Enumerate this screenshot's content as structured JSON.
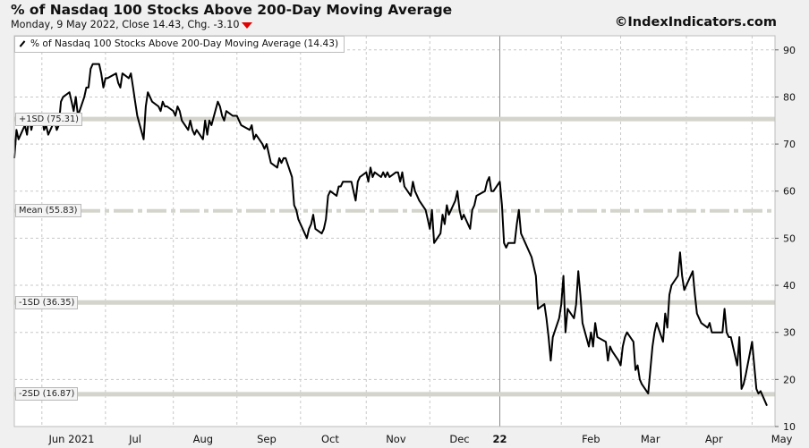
{
  "header": {
    "title": "% of Nasdaq 100 Stocks Above 200-Day Moving Average",
    "subtitle": "Monday, 9 May 2022, Close 14.43, Chg. -3.10",
    "change_direction": "down",
    "change_color": "#e00000",
    "source": "©IndexIndicators.com"
  },
  "chart_data": {
    "type": "line",
    "title": "% of Nasdaq 100 Stocks Above 200-Day Moving Average",
    "legend": {
      "label": "% of Nasdaq 100 Stocks Above 200-Day Moving Average (14.43)",
      "placement": "top-left"
    },
    "y_axis": {
      "position": "right",
      "ylim": [
        10,
        93
      ],
      "ticks": [
        10,
        20,
        30,
        40,
        50,
        60,
        70,
        80,
        90
      ]
    },
    "x_axis": {
      "ticks": [
        "Jun 2021",
        "Jul",
        "Aug",
        "Sep",
        "Oct",
        "Nov",
        "Dec",
        "22",
        "Feb",
        "Mar",
        "Apr",
        "May"
      ],
      "year_separator_index": 7
    },
    "grid": true,
    "line_color": "#000000",
    "reference_lines": [
      {
        "label": "+1SD (75.31)",
        "value": 75.31,
        "style": "band"
      },
      {
        "label": "Mean (55.83)",
        "value": 55.83,
        "style": "dashdot"
      },
      {
        "label": "-1SD (36.35)",
        "value": 36.35,
        "style": "band"
      },
      {
        "label": "-2SD (16.87)",
        "value": 16.87,
        "style": "band"
      }
    ],
    "series": [
      {
        "name": "% of Nasdaq 100 Stocks Above 200-Day Moving Average",
        "points": [
          [
            "2021-05-19",
            67
          ],
          [
            "2021-05-20",
            73
          ],
          [
            "2021-05-21",
            71
          ],
          [
            "2021-05-24",
            74
          ],
          [
            "2021-05-25",
            72
          ],
          [
            "2021-05-26",
            76
          ],
          [
            "2021-05-27",
            73
          ],
          [
            "2021-05-28",
            75
          ],
          [
            "2021-06-01",
            76
          ],
          [
            "2021-06-02",
            73
          ],
          [
            "2021-06-03",
            74
          ],
          [
            "2021-06-04",
            72
          ],
          [
            "2021-06-07",
            75
          ],
          [
            "2021-06-08",
            73
          ],
          [
            "2021-06-09",
            74
          ],
          [
            "2021-06-10",
            79
          ],
          [
            "2021-06-11",
            80
          ],
          [
            "2021-06-14",
            81
          ],
          [
            "2021-06-15",
            79
          ],
          [
            "2021-06-16",
            77
          ],
          [
            "2021-06-17",
            80
          ],
          [
            "2021-06-18",
            76
          ],
          [
            "2021-06-21",
            80
          ],
          [
            "2021-06-22",
            82
          ],
          [
            "2021-06-23",
            82
          ],
          [
            "2021-06-24",
            86
          ],
          [
            "2021-06-25",
            87
          ],
          [
            "2021-06-28",
            87
          ],
          [
            "2021-06-29",
            85
          ],
          [
            "2021-06-30",
            82
          ],
          [
            "2021-07-01",
            84
          ],
          [
            "2021-07-02",
            84
          ],
          [
            "2021-07-06",
            85
          ],
          [
            "2021-07-07",
            83
          ],
          [
            "2021-07-08",
            82
          ],
          [
            "2021-07-09",
            85
          ],
          [
            "2021-07-12",
            84
          ],
          [
            "2021-07-13",
            85
          ],
          [
            "2021-07-14",
            82
          ],
          [
            "2021-07-15",
            79
          ],
          [
            "2021-07-16",
            76
          ],
          [
            "2021-07-19",
            71
          ],
          [
            "2021-07-20",
            78
          ],
          [
            "2021-07-21",
            81
          ],
          [
            "2021-07-22",
            80
          ],
          [
            "2021-07-23",
            79
          ],
          [
            "2021-07-26",
            78
          ],
          [
            "2021-07-27",
            77
          ],
          [
            "2021-07-28",
            79
          ],
          [
            "2021-07-29",
            78
          ],
          [
            "2021-07-30",
            78
          ],
          [
            "2021-08-02",
            77
          ],
          [
            "2021-08-03",
            76
          ],
          [
            "2021-08-04",
            78
          ],
          [
            "2021-08-05",
            77
          ],
          [
            "2021-08-06",
            75
          ],
          [
            "2021-08-09",
            73
          ],
          [
            "2021-08-10",
            75
          ],
          [
            "2021-08-11",
            73
          ],
          [
            "2021-08-12",
            72
          ],
          [
            "2021-08-13",
            73
          ],
          [
            "2021-08-16",
            71
          ],
          [
            "2021-08-17",
            75
          ],
          [
            "2021-08-18",
            72
          ],
          [
            "2021-08-19",
            75
          ],
          [
            "2021-08-20",
            74
          ],
          [
            "2021-08-23",
            79
          ],
          [
            "2021-08-24",
            78
          ],
          [
            "2021-08-25",
            76
          ],
          [
            "2021-08-26",
            75
          ],
          [
            "2021-08-27",
            77
          ],
          [
            "2021-08-30",
            76
          ],
          [
            "2021-08-31",
            76
          ],
          [
            "2021-09-01",
            76
          ],
          [
            "2021-09-02",
            75
          ],
          [
            "2021-09-03",
            74
          ],
          [
            "2021-09-07",
            73
          ],
          [
            "2021-09-08",
            74
          ],
          [
            "2021-09-09",
            71
          ],
          [
            "2021-09-10",
            72
          ],
          [
            "2021-09-13",
            70
          ],
          [
            "2021-09-14",
            69
          ],
          [
            "2021-09-15",
            70
          ],
          [
            "2021-09-16",
            68
          ],
          [
            "2021-09-17",
            66
          ],
          [
            "2021-09-20",
            65
          ],
          [
            "2021-09-21",
            67
          ],
          [
            "2021-09-22",
            66
          ],
          [
            "2021-09-23",
            67
          ],
          [
            "2021-09-24",
            67
          ],
          [
            "2021-09-27",
            63
          ],
          [
            "2021-09-28",
            57
          ],
          [
            "2021-09-29",
            56
          ],
          [
            "2021-09-30",
            54
          ],
          [
            "2021-10-01",
            53
          ],
          [
            "2021-10-04",
            50
          ],
          [
            "2021-10-05",
            52
          ],
          [
            "2021-10-06",
            53
          ],
          [
            "2021-10-07",
            55
          ],
          [
            "2021-10-08",
            52
          ],
          [
            "2021-10-11",
            51
          ],
          [
            "2021-10-12",
            52
          ],
          [
            "2021-10-13",
            54
          ],
          [
            "2021-10-14",
            59
          ],
          [
            "2021-10-15",
            60
          ],
          [
            "2021-10-18",
            59
          ],
          [
            "2021-10-19",
            61
          ],
          [
            "2021-10-20",
            61
          ],
          [
            "2021-10-21",
            62
          ],
          [
            "2021-10-22",
            62
          ],
          [
            "2021-10-25",
            62
          ],
          [
            "2021-10-26",
            60
          ],
          [
            "2021-10-27",
            58
          ],
          [
            "2021-10-28",
            62
          ],
          [
            "2021-10-29",
            63
          ],
          [
            "2021-11-01",
            64
          ],
          [
            "2021-11-02",
            62
          ],
          [
            "2021-11-03",
            65
          ],
          [
            "2021-11-04",
            63
          ],
          [
            "2021-11-05",
            64
          ],
          [
            "2021-11-08",
            63
          ],
          [
            "2021-11-09",
            64
          ],
          [
            "2021-11-10",
            63
          ],
          [
            "2021-11-11",
            64
          ],
          [
            "2021-11-12",
            63
          ],
          [
            "2021-11-15",
            64
          ],
          [
            "2021-11-16",
            64
          ],
          [
            "2021-11-17",
            62
          ],
          [
            "2021-11-18",
            64
          ],
          [
            "2021-11-19",
            61
          ],
          [
            "2021-11-22",
            59
          ],
          [
            "2021-11-23",
            62
          ],
          [
            "2021-11-24",
            60
          ],
          [
            "2021-11-26",
            58
          ],
          [
            "2021-11-29",
            56
          ],
          [
            "2021-11-30",
            54
          ],
          [
            "2021-12-01",
            52
          ],
          [
            "2021-12-02",
            56
          ],
          [
            "2021-12-03",
            49
          ],
          [
            "2021-12-06",
            51
          ],
          [
            "2021-12-07",
            55
          ],
          [
            "2021-12-08",
            53
          ],
          [
            "2021-12-09",
            57
          ],
          [
            "2021-12-10",
            55
          ],
          [
            "2021-12-13",
            58
          ],
          [
            "2021-12-14",
            60
          ],
          [
            "2021-12-15",
            56
          ],
          [
            "2021-12-16",
            54
          ],
          [
            "2021-12-17",
            55
          ],
          [
            "2021-12-20",
            52
          ],
          [
            "2021-12-21",
            56
          ],
          [
            "2021-12-22",
            57
          ],
          [
            "2021-12-23",
            59
          ],
          [
            "2021-12-27",
            60
          ],
          [
            "2021-12-28",
            62
          ],
          [
            "2021-12-29",
            63
          ],
          [
            "2021-12-30",
            60
          ],
          [
            "2021-12-31",
            60
          ],
          [
            "2022-01-03",
            62
          ],
          [
            "2022-01-04",
            57
          ],
          [
            "2022-01-05",
            49
          ],
          [
            "2022-01-06",
            48
          ],
          [
            "2022-01-07",
            49
          ],
          [
            "2022-01-10",
            49
          ],
          [
            "2022-01-11",
            53
          ],
          [
            "2022-01-12",
            56
          ],
          [
            "2022-01-13",
            51
          ],
          [
            "2022-01-14",
            50
          ],
          [
            "2022-01-18",
            46
          ],
          [
            "2022-01-19",
            44
          ],
          [
            "2022-01-20",
            42
          ],
          [
            "2022-01-21",
            35
          ],
          [
            "2022-01-24",
            36
          ],
          [
            "2022-01-25",
            33
          ],
          [
            "2022-01-26",
            29
          ],
          [
            "2022-01-27",
            24
          ],
          [
            "2022-01-28",
            29
          ],
          [
            "2022-01-31",
            33
          ],
          [
            "2022-02-01",
            36
          ],
          [
            "2022-02-02",
            42
          ],
          [
            "2022-02-03",
            30
          ],
          [
            "2022-02-04",
            35
          ],
          [
            "2022-02-07",
            33
          ],
          [
            "2022-02-08",
            36
          ],
          [
            "2022-02-09",
            43
          ],
          [
            "2022-02-10",
            38
          ],
          [
            "2022-02-11",
            32
          ],
          [
            "2022-02-14",
            27
          ],
          [
            "2022-02-15",
            30
          ],
          [
            "2022-02-16",
            27
          ],
          [
            "2022-02-17",
            32
          ],
          [
            "2022-02-18",
            29
          ],
          [
            "2022-02-22",
            28
          ],
          [
            "2022-02-23",
            24
          ],
          [
            "2022-02-24",
            27
          ],
          [
            "2022-02-25",
            26
          ],
          [
            "2022-02-28",
            24
          ],
          [
            "2022-03-01",
            23
          ],
          [
            "2022-03-02",
            27
          ],
          [
            "2022-03-03",
            29
          ],
          [
            "2022-03-04",
            30
          ],
          [
            "2022-03-07",
            28
          ],
          [
            "2022-03-08",
            22
          ],
          [
            "2022-03-09",
            23
          ],
          [
            "2022-03-10",
            20
          ],
          [
            "2022-03-11",
            19
          ],
          [
            "2022-03-14",
            17
          ],
          [
            "2022-03-15",
            22
          ],
          [
            "2022-03-16",
            27
          ],
          [
            "2022-03-17",
            30
          ],
          [
            "2022-03-18",
            32
          ],
          [
            "2022-03-21",
            28
          ],
          [
            "2022-03-22",
            34
          ],
          [
            "2022-03-23",
            31
          ],
          [
            "2022-03-24",
            38
          ],
          [
            "2022-03-25",
            40
          ],
          [
            "2022-03-28",
            42
          ],
          [
            "2022-03-29",
            47
          ],
          [
            "2022-03-30",
            42
          ],
          [
            "2022-03-31",
            39
          ],
          [
            "2022-04-01",
            40
          ],
          [
            "2022-04-04",
            43
          ],
          [
            "2022-04-05",
            38
          ],
          [
            "2022-04-06",
            34
          ],
          [
            "2022-04-07",
            33
          ],
          [
            "2022-04-08",
            32
          ],
          [
            "2022-04-11",
            31
          ],
          [
            "2022-04-12",
            32
          ],
          [
            "2022-04-13",
            30
          ],
          [
            "2022-04-14",
            30
          ],
          [
            "2022-04-18",
            30
          ],
          [
            "2022-04-19",
            35
          ],
          [
            "2022-04-20",
            30
          ],
          [
            "2022-04-21",
            29
          ],
          [
            "2022-04-22",
            29
          ],
          [
            "2022-04-25",
            23
          ],
          [
            "2022-04-26",
            29
          ],
          [
            "2022-04-27",
            18
          ],
          [
            "2022-04-28",
            19
          ],
          [
            "2022-04-29",
            21
          ],
          [
            "2022-05-02",
            28
          ],
          [
            "2022-05-03",
            23
          ],
          [
            "2022-05-04",
            18
          ],
          [
            "2022-05-05",
            17
          ],
          [
            "2022-05-06",
            17.53
          ],
          [
            "2022-05-09",
            14.43
          ]
        ]
      }
    ]
  }
}
